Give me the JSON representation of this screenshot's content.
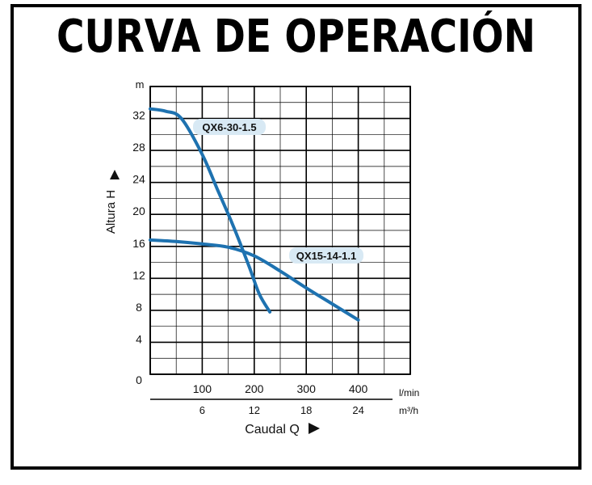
{
  "title": "CURVA DE OPERACIÓN",
  "colors": {
    "curve": "#1e72b0",
    "label_bg": "#d8e9f4",
    "grid": "#000000"
  },
  "chart_data": {
    "type": "line",
    "y_unit": "m",
    "ylabel": "Altura  H",
    "ylim": [
      0,
      36
    ],
    "y_ticks": [
      "0",
      "4",
      "8",
      "12",
      "16",
      "20",
      "24",
      "28",
      "32"
    ],
    "xlim": [
      0,
      500
    ],
    "x_ticks_lmin": [
      "100",
      "200",
      "300",
      "400"
    ],
    "x_unit_lmin": "l/min",
    "x_ticks_m3h": [
      "6",
      "12",
      "18",
      "24"
    ],
    "x_unit_m3h": "m³/h",
    "xlabel": "Caudal  Q",
    "series": [
      {
        "name": "QX6-30-1.5",
        "x": [
          0,
          30,
          60,
          100,
          130,
          160,
          190,
          210,
          230
        ],
        "y": [
          33.2,
          32.9,
          32.0,
          27.5,
          23.0,
          18.5,
          13.5,
          10.0,
          7.8
        ]
      },
      {
        "name": "QX15-14-1.1",
        "x": [
          0,
          50,
          100,
          150,
          200,
          250,
          300,
          350,
          400
        ],
        "y": [
          16.8,
          16.6,
          16.3,
          15.9,
          14.8,
          12.9,
          10.8,
          8.8,
          6.8
        ]
      }
    ]
  }
}
